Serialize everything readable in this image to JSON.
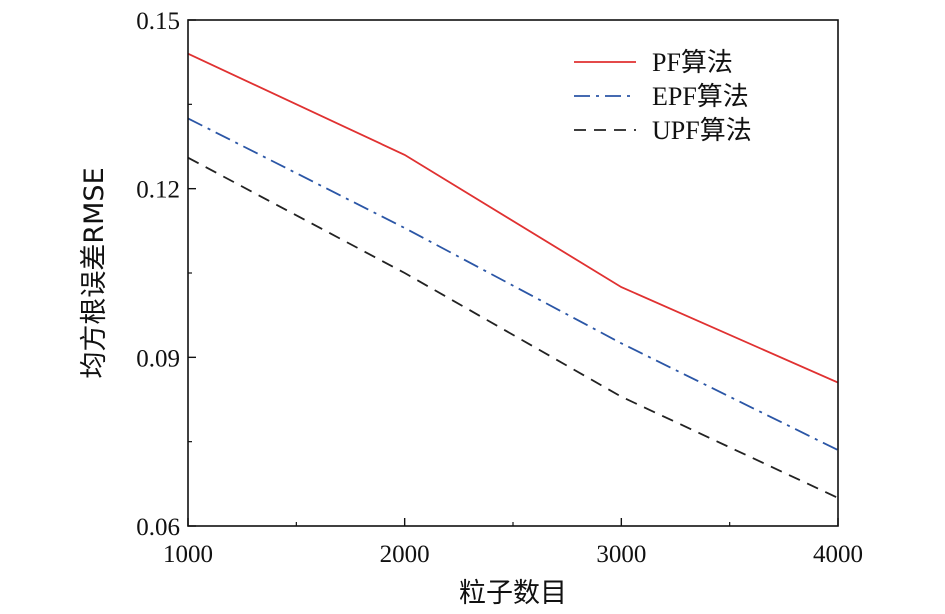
{
  "chart_data": {
    "type": "line",
    "title": "",
    "xlabel": "粒子数目",
    "ylabel": "均方根误差RMSE",
    "x": [
      1000,
      2000,
      3000,
      4000
    ],
    "xlim": [
      1000,
      4000
    ],
    "ylim": [
      0.06,
      0.15
    ],
    "xticks": [
      1000,
      2000,
      3000,
      4000
    ],
    "xtick_labels": [
      "1000",
      "2000",
      "3000",
      "4000"
    ],
    "yticks": [
      0.06,
      0.09,
      0.12,
      0.15
    ],
    "ytick_labels": [
      "0.06",
      "0.09",
      "0.12",
      "0.15"
    ],
    "grid": false,
    "legend_position": "top-right",
    "series": [
      {
        "name": "PF算法",
        "values": [
          0.144,
          0.126,
          0.1025,
          0.0855
        ],
        "color": "#e03131",
        "dash": "solid"
      },
      {
        "name": "EPF算法",
        "values": [
          0.1325,
          0.113,
          0.0925,
          0.0735
        ],
        "color": "#2b56a6",
        "dash": "dashdot"
      },
      {
        "name": "UPF算法",
        "values": [
          0.1255,
          0.105,
          0.083,
          0.065
        ],
        "color": "#222222",
        "dash": "dashed"
      }
    ]
  }
}
